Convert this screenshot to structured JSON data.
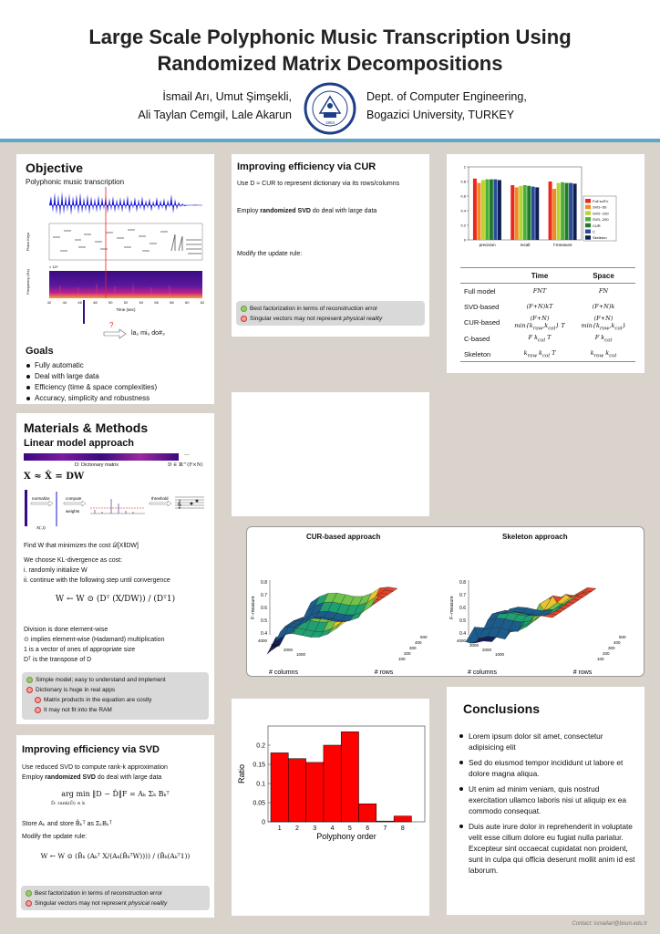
{
  "header": {
    "title_line1": "Large Scale Polyphonic Music Transcription Using",
    "title_line2": "Randomized Matrix Decompositions",
    "authors_line1": "İsmail Arı, Umut Şimşekli,",
    "authors_line2": "Ali Taylan Cemgil, Lale Akarun",
    "affil_line1": "Dept. of Computer Engineering,",
    "affil_line2": "Bogazici University, TURKEY",
    "logo_text": "BOĞAZİÇİ ÜNİVERSİTESİ 1863"
  },
  "objective": {
    "heading": "Objective",
    "subtitle": "Polyphonic music transcription",
    "ylabel_keys": "Piano Keys",
    "ylabel_freq": "Frequency (Hz)",
    "xlabel": "Time (sec)",
    "xticks": [
      "42",
      "44",
      "46",
      "48",
      "50",
      "52",
      "54",
      "56",
      "58",
      "60",
      "62"
    ],
    "freq_scale": "× 10⁴",
    "question": "?",
    "notes_text": "la₂ mi₃ do#₃",
    "goals_heading": "Goals",
    "goals": [
      "Fully automatic",
      "Deal with large data",
      "Efficiency (time & space complexities)",
      "Accuracy, simplicity and robustness"
    ]
  },
  "methods": {
    "heading": "Materials & Methods",
    "sub": "Linear model approach",
    "dict_label": "D: Dictionary matrix",
    "dict_dim": "D ∈ ℝ^(F×N)",
    "dots": "...",
    "eq_model": "X ≈ X̂ = DW",
    "flow_normalize": "normalize",
    "flow_compute": "compute",
    "flow_weights": "weights",
    "flow_threshold": "threshold",
    "flow_xcol": "X(:,t)",
    "line_find": "Find W that minimizes the cost 𝒟[X‖DW]",
    "line_kl": "We choose KL-divergence as cost:",
    "step1": "i.   randomly initialize W",
    "step2": "ii.  continue with the following step until convergence",
    "eq_update": "W ← W ⊙ (Dᵀ (X/DW)) / (Dᵀ1)",
    "div_note": "Division is done element-wise",
    "hadamard": "⊙ implies element-wise (Hadamard) multiplication",
    "ones": "1 is a vector of ones of appropriate size",
    "transpose": "Dᵀ is the transpose of  D",
    "pros": [
      "Simple model; easy to understand and implement"
    ],
    "cons": [
      "Dictionary is huge in real apps"
    ],
    "sub_cons": [
      "Matrix products in the equation are costly",
      "It may not fit into the RAM"
    ]
  },
  "svd": {
    "heading": "Improving efficiency via SVD",
    "l1": "Use reduced SVD to compute rank-k approximation",
    "l2_pre": "Employ ",
    "l2_bold": "randomized SVD",
    "l2_post": " do deal with large data",
    "eq_argmin": "arg min ‖D − D̂‖F = Aₖ Σₖ Bₖᵀ",
    "eq_sub": "D̂: rank(D̂) ≤ k",
    "store": "Store  Aₖ and store  B̂ₖᵀ as  ΣₖBₖᵀ",
    "modify": "Modify the update rule:",
    "eq_rule": "W ← W ⊙ (B̂ₖ (Aₖᵀ X/(Aₖ(B̂ₖᵀW)))) / (B̂ₖ(Aₖᵀ1))",
    "pro": "Best factorization in terms of reconstruction error",
    "con_pre": "Singular vectors may not represent ",
    "con_it": "physical reality"
  },
  "cur": {
    "heading": "Improving efficiency via CUR",
    "l1": "Use  D ≈ CUR  to represent dictionary via its rows/columns",
    "l2_pre": "Employ ",
    "l2_bold": "randomized SVD",
    "l2_post": " do deal with large data",
    "l3": "Modify the update rule:",
    "pro": "Best factorization in terms of reconstruction error",
    "con_pre": "Singular vectors may not represent ",
    "con_it": "physical reality"
  },
  "complexity": {
    "headers": [
      "",
      "Time",
      "Space"
    ],
    "rows": [
      [
        "Full model",
        "FNT",
        "FN"
      ],
      [
        "SVD-based",
        "(F+N)kT",
        "(F+N)k"
      ],
      [
        "CUR-based",
        "(F+N) min{k_row,k_col} T",
        "(F+N) min{k_row,k_col}"
      ],
      [
        "C-based",
        "F k_col T",
        "F k_col"
      ],
      [
        "Skeleton",
        "k_row k_col T",
        "k_row k_col"
      ]
    ]
  },
  "chart_data": [
    {
      "type": "bar",
      "categories": [
        "precision",
        "recall",
        "f-measure"
      ],
      "series": [
        {
          "name": "Full solTn",
          "values": [
            0.84,
            0.75,
            0.8
          ],
          "color": "#e8291c"
        },
        {
          "name": "SVD--50",
          "values": [
            0.78,
            0.72,
            0.7
          ],
          "color": "#f08a24"
        },
        {
          "name": "SVD--100",
          "values": [
            0.82,
            0.74,
            0.78
          ],
          "color": "#b8d430"
        },
        {
          "name": "SVD--200",
          "values": [
            0.83,
            0.75,
            0.79
          ],
          "color": "#4caf3a"
        },
        {
          "name": "CUR",
          "values": [
            0.83,
            0.74,
            0.78
          ],
          "color": "#237a2e"
        },
        {
          "name": "C",
          "values": [
            0.83,
            0.73,
            0.78
          ],
          "color": "#2b4a9c"
        },
        {
          "name": "Skeleton",
          "values": [
            0.82,
            0.72,
            0.77
          ],
          "color": "#0e1f52"
        }
      ],
      "yticks": [
        "0",
        "0.2",
        "0.4",
        "0.6",
        "0.8",
        "1"
      ],
      "ylim": [
        0,
        1
      ]
    },
    {
      "type": "bar",
      "categories": [
        "1",
        "2",
        "3",
        "4",
        "5",
        "6",
        "7",
        "8"
      ],
      "values": [
        0.18,
        0.165,
        0.155,
        0.2,
        0.235,
        0.047,
        0.002,
        0.015
      ],
      "xlabel": "Polyphony order",
      "ylabel": "Ratio",
      "yticks": [
        "0",
        "0.05",
        "0.1",
        "0.15",
        "0.2"
      ],
      "ylim": [
        0,
        0.25
      ]
    }
  ],
  "surfaces": {
    "left_title": "CUR-based approach",
    "right_title": "Skeleton approach",
    "zlabel": "F−measure",
    "zticks": [
      "0.8",
      "0.7",
      "0.6",
      "0.5",
      "0.4"
    ],
    "x_label": "# columns",
    "y_label": "# rows",
    "x_ticks": [
      "4000",
      "3000",
      "2000",
      "1000"
    ],
    "y_ticks": [
      "500",
      "400",
      "300",
      "200",
      "100"
    ]
  },
  "conclusions": {
    "heading": "Conclusions",
    "items": [
      "Lorem ipsum dolor sit amet, consectetur adipisicing elit",
      "Sed do eiusmod tempor incididunt ut labore et dolore magna aliqua.",
      "Ut enim ad minim veniam, quis nostrud exercitation ullamco laboris nisi ut aliquip ex ea commodo consequat.",
      "Duis aute irure dolor in reprehenderit in voluptate velit esse cillum dolore eu fugiat nulla pariatur. Excepteur sint occaecat cupidatat non proident, sunt in culpa qui officia deserunt mollit anim id est laborum."
    ]
  },
  "footer": {
    "contact": "Contact: ismailari@boun.edu.tr"
  }
}
